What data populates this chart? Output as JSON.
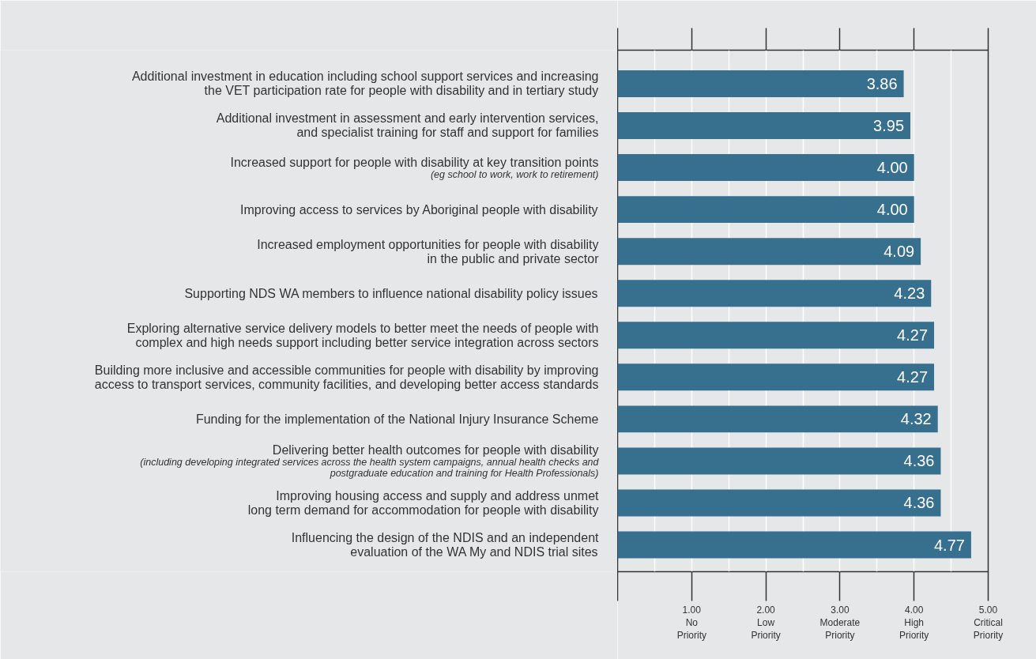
{
  "chart_data": {
    "type": "bar",
    "orientation": "horizontal",
    "color": "#376f8f",
    "categories": [
      "Additional investment in education including school support services and increasing\nthe VET participation rate for people with disability and in tertiary study",
      "Additional investment in assessment and early intervention services,\nand specialist training for staff and support for families",
      "Increased support for people with disability at key transition points",
      "Improving access to services by Aboriginal people with disability",
      "Increased employment opportunities for people with disability\nin the public and private sector",
      "Supporting NDS WA members to influence national disability policy issues",
      "Exploring alternative service delivery models to better meet the needs of people with\ncomplex and high needs support including better service integration across sectors",
      "Building more inclusive and accessible communities for people with disability by improving\naccess to transport services, community facilities, and developing better access standards",
      "Funding for the implementation of the National Injury Insurance Scheme",
      "Delivering better health outcomes for people with disability",
      "Improving housing access and supply and address unmet\nlong term demand for accommodation for people with disability",
      "Influencing the design of the NDIS and an independent\nevaluation of the WA My and NDIS trial sites"
    ],
    "values": [
      3.86,
      3.95,
      4.0,
      4.0,
      4.09,
      4.23,
      4.27,
      4.27,
      4.32,
      4.36,
      4.36,
      4.77
    ],
    "value_labels": [
      "3.86",
      "3.95",
      "4.00",
      "4.00",
      "4.09",
      "4.23",
      "4.27",
      "4.27",
      "4.32",
      "4.36",
      "4.36",
      "4.77"
    ],
    "annotations": [
      "(eg school to work, work to retirement)",
      "(including developing integrated services across the health system campaigns, annual health checks and\npostgraduate education and training for Health Professionals)"
    ],
    "xlim": [
      0,
      5
    ],
    "xticks": [
      {
        "value": 0,
        "label": null
      },
      {
        "value": 1,
        "label": "1.00\nNo\nPriority"
      },
      {
        "value": 2,
        "label": "2.00\nLow\nPriority"
      },
      {
        "value": 3,
        "label": "3.00\nModerate\nPriority"
      },
      {
        "value": 4,
        "label": "4.00\nHigh\nPriority"
      },
      {
        "value": 5,
        "label": "5.00\nCritical\nPriority"
      }
    ],
    "tick_labels": "x",
    "grid": "x"
  }
}
